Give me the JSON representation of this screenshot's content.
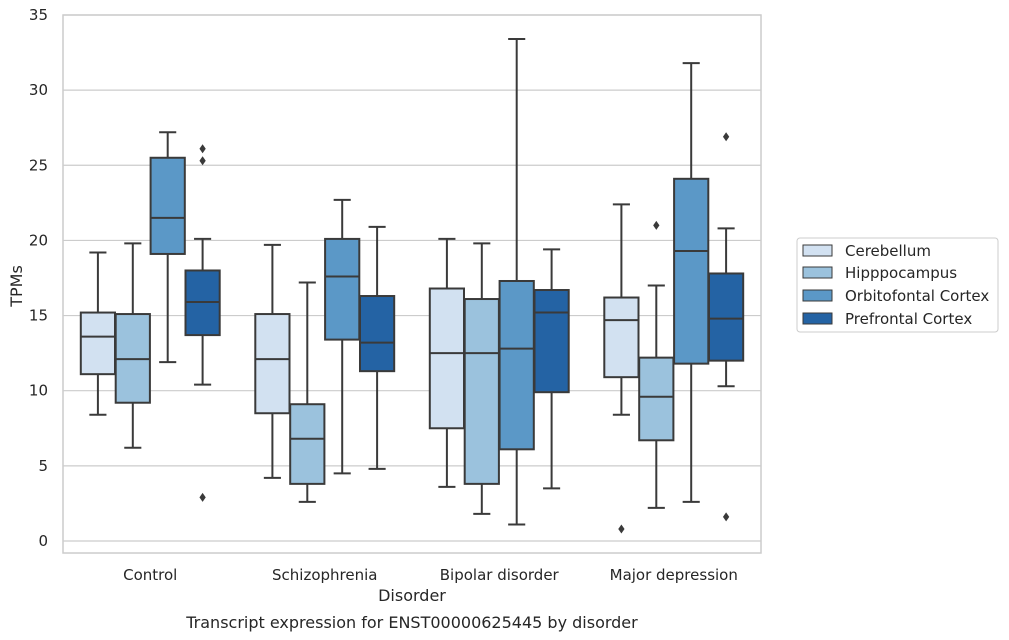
{
  "chart_data": {
    "type": "box",
    "caption": "Transcript expression for ENST00000625445 by disorder",
    "xlabel": "Disorder",
    "ylabel": "TPMs",
    "ylim": [
      -0.8,
      35
    ],
    "yticks": [
      0,
      5,
      10,
      15,
      20,
      25,
      30,
      35
    ],
    "grid": true,
    "legend_position": "right",
    "categories": [
      "Control",
      "Schizophrenia",
      "Bipolar disorder",
      "Major depression"
    ],
    "series": [
      {
        "name": "Cerebellum",
        "color": "#d2e1f1",
        "boxes": [
          {
            "whisker_low": 8.4,
            "q1": 11.1,
            "median": 13.6,
            "q3": 15.2,
            "whisker_high": 19.2,
            "outliers": []
          },
          {
            "whisker_low": 4.2,
            "q1": 8.5,
            "median": 12.1,
            "q3": 15.1,
            "whisker_high": 19.7,
            "outliers": []
          },
          {
            "whisker_low": 3.6,
            "q1": 7.5,
            "median": 12.5,
            "q3": 16.8,
            "whisker_high": 20.1,
            "outliers": []
          },
          {
            "whisker_low": 8.4,
            "q1": 10.9,
            "median": 14.7,
            "q3": 16.2,
            "whisker_high": 22.4,
            "outliers": [
              0.8
            ]
          }
        ]
      },
      {
        "name": "Hipppocampus",
        "color": "#9bc2dd",
        "boxes": [
          {
            "whisker_low": 6.2,
            "q1": 9.2,
            "median": 12.1,
            "q3": 15.1,
            "whisker_high": 19.8,
            "outliers": []
          },
          {
            "whisker_low": 2.6,
            "q1": 3.8,
            "median": 6.8,
            "q3": 9.1,
            "whisker_high": 17.2,
            "outliers": []
          },
          {
            "whisker_low": 1.8,
            "q1": 3.8,
            "median": 12.5,
            "q3": 16.1,
            "whisker_high": 19.8,
            "outliers": []
          },
          {
            "whisker_low": 2.2,
            "q1": 6.7,
            "median": 9.6,
            "q3": 12.2,
            "whisker_high": 17.0,
            "outliers": [
              21.0
            ]
          }
        ]
      },
      {
        "name": "Orbitofontal Cortex",
        "color": "#5b98c7",
        "boxes": [
          {
            "whisker_low": 11.9,
            "q1": 19.1,
            "median": 21.5,
            "q3": 25.5,
            "whisker_high": 27.2,
            "outliers": []
          },
          {
            "whisker_low": 4.5,
            "q1": 13.4,
            "median": 17.6,
            "q3": 20.1,
            "whisker_high": 22.7,
            "outliers": []
          },
          {
            "whisker_low": 1.1,
            "q1": 6.1,
            "median": 12.8,
            "q3": 17.3,
            "whisker_high": 33.4,
            "outliers": []
          },
          {
            "whisker_low": 2.6,
            "q1": 11.8,
            "median": 19.3,
            "q3": 24.1,
            "whisker_high": 31.8,
            "outliers": []
          }
        ]
      },
      {
        "name": "Prefrontal Cortex",
        "color": "#2463a4",
        "boxes": [
          {
            "whisker_low": 10.4,
            "q1": 13.7,
            "median": 15.9,
            "q3": 18.0,
            "whisker_high": 20.1,
            "outliers": [
              26.1,
              25.3,
              2.9
            ]
          },
          {
            "whisker_low": 4.8,
            "q1": 11.3,
            "median": 13.2,
            "q3": 16.3,
            "whisker_high": 20.9,
            "outliers": []
          },
          {
            "whisker_low": 3.5,
            "q1": 9.9,
            "median": 15.2,
            "q3": 16.7,
            "whisker_high": 19.4,
            "outliers": []
          },
          {
            "whisker_low": 10.3,
            "q1": 12.0,
            "median": 14.8,
            "q3": 17.8,
            "whisker_high": 20.8,
            "outliers": [
              26.9,
              1.6
            ]
          }
        ]
      }
    ]
  }
}
